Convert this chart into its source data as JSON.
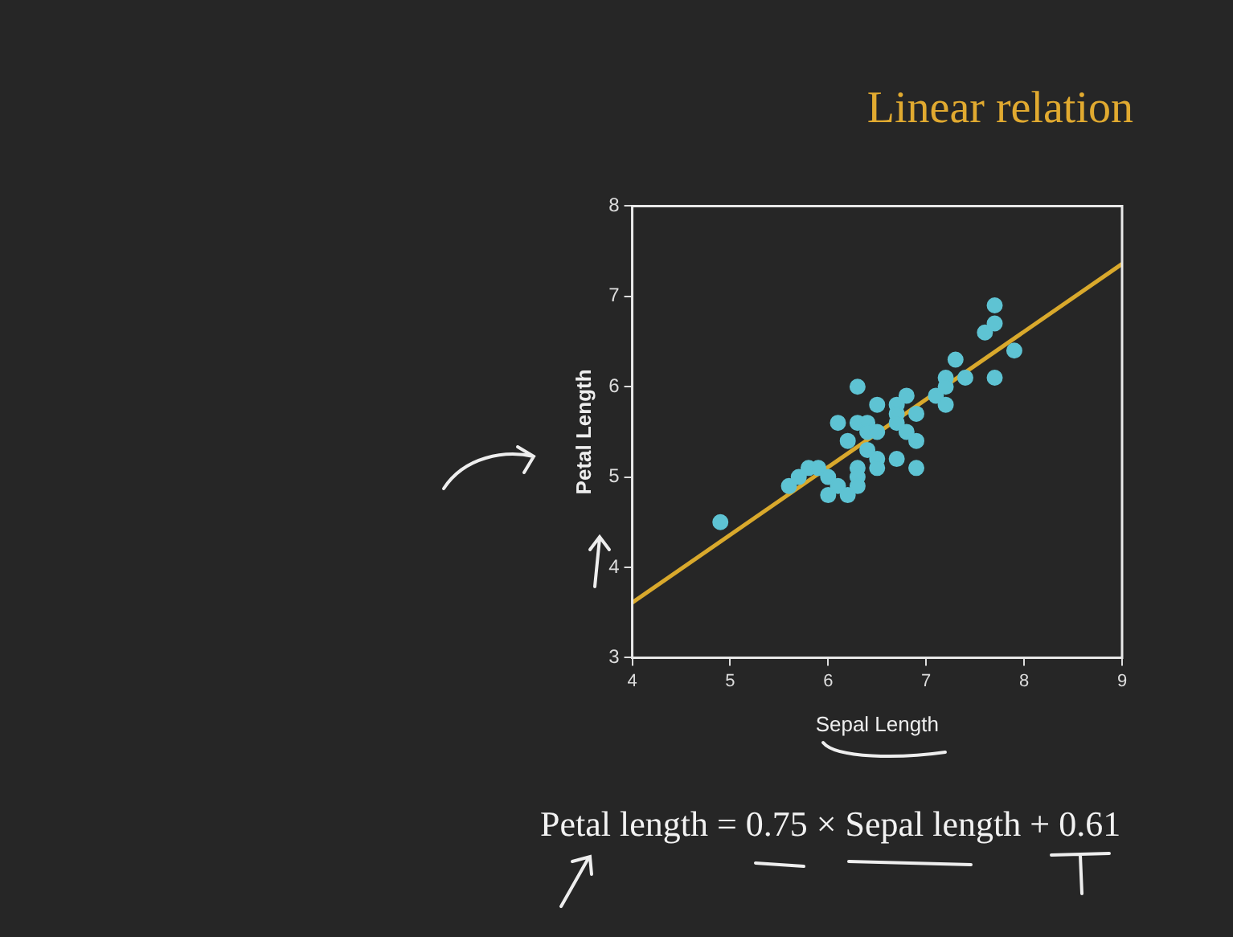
{
  "chart_data": {
    "type": "scatter",
    "title": "Linear relation",
    "xlabel": "Sepal Length",
    "ylabel": "Petal Length",
    "annotations": [
      "Petal length = 0.75 × Sepal length + 0.61"
    ],
    "xlim": [
      4,
      9
    ],
    "xticks": [
      4,
      5,
      6,
      7,
      8,
      9
    ],
    "ylim": [
      3,
      8
    ],
    "yticks": [
      3,
      4,
      5,
      6,
      7,
      8
    ],
    "grid": false,
    "legend": false,
    "marker": "circle",
    "series": [
      {
        "color": "#5ec3d3",
        "x": [
          4.9,
          5.6,
          5.7,
          5.8,
          5.9,
          6.0,
          6.0,
          6.1,
          6.1,
          6.2,
          6.2,
          6.3,
          6.3,
          6.3,
          6.3,
          6.3,
          6.4,
          6.4,
          6.4,
          6.5,
          6.5,
          6.5,
          6.5,
          6.7,
          6.7,
          6.7,
          6.7,
          6.8,
          6.8,
          6.9,
          6.9,
          6.9,
          7.1,
          7.2,
          7.2,
          7.2,
          7.3,
          7.4,
          7.6,
          7.7,
          7.7,
          7.7,
          7.9
        ],
        "values": [
          4.5,
          4.9,
          5.0,
          5.1,
          5.1,
          5.0,
          4.8,
          4.9,
          5.6,
          4.8,
          5.4,
          6.0,
          5.6,
          5.1,
          5.0,
          4.9,
          5.6,
          5.5,
          5.3,
          5.5,
          5.8,
          5.2,
          5.1,
          5.8,
          5.7,
          5.6,
          5.2,
          5.9,
          5.5,
          5.7,
          5.4,
          5.1,
          5.9,
          6.1,
          6.0,
          5.8,
          6.3,
          6.1,
          6.6,
          6.9,
          6.7,
          6.1,
          6.4
        ]
      },
      {
        "type": "line",
        "color": "#d9a92c",
        "marker": "none",
        "x": [
          4,
          9
        ],
        "values": [
          3.61,
          7.36
        ]
      }
    ]
  }
}
